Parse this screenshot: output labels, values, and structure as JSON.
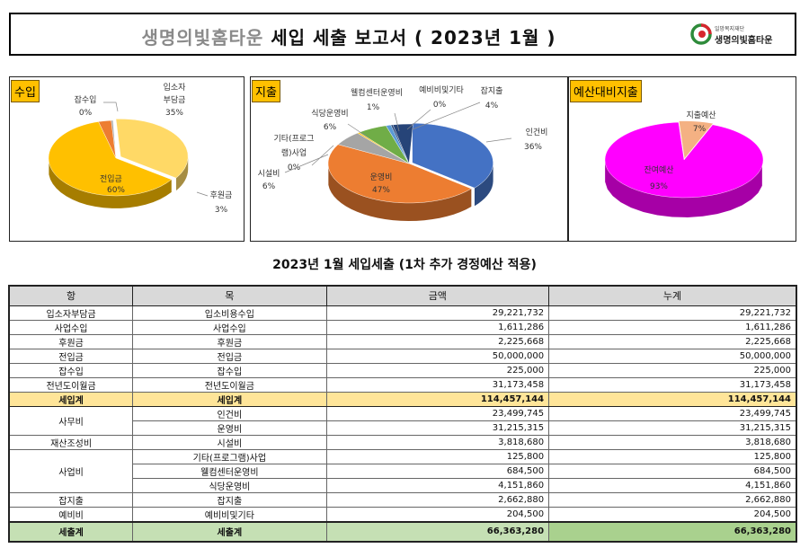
{
  "header": {
    "title_org": "생명의빛홈타운",
    "title_main": "세입 세출 보고서 ( 2023년 1월 )",
    "logo_small": "일망복지재단",
    "logo_name": "생명의빛홈타운"
  },
  "panels": {
    "income_tag": "수입",
    "expense_tag": "지출",
    "budget_tag": "예산대비지출"
  },
  "chart_data": [
    {
      "type": "pie",
      "title": "수입",
      "labels": [
        "입소자 부담금",
        "전입금",
        "후원금",
        "잡수입"
      ],
      "values": [
        35,
        60,
        3,
        0
      ],
      "display_labels": [
        {
          "name": "입소자",
          "name2": "부담금",
          "pct": "35%"
        },
        {
          "name": "전입금",
          "pct": "60%"
        },
        {
          "name": "후원금",
          "pct": "3%"
        },
        {
          "name": "잡수입",
          "pct": "0%"
        }
      ],
      "colors": [
        "#ffd966",
        "#ffc000",
        "#ed7d31",
        "#a5a5a5"
      ]
    },
    {
      "type": "pie",
      "title": "지출",
      "labels": [
        "인건비",
        "운영비",
        "시설비",
        "기타(프로그램)사업",
        "식당운영비",
        "웰컴센터운영비",
        "예비비및기타",
        "잡지출"
      ],
      "values": [
        36,
        47,
        6,
        0,
        6,
        1,
        0,
        4
      ],
      "display_labels": [
        {
          "name": "인건비",
          "pct": "36%"
        },
        {
          "name": "운영비",
          "pct": "47%"
        },
        {
          "name": "시설비",
          "pct": "6%"
        },
        {
          "name": "기타(프로그",
          "name2": "램)사업",
          "pct": "0%"
        },
        {
          "name": "식당운영비",
          "pct": "6%"
        },
        {
          "name": "웰컴센터운영비",
          "pct": "1%"
        },
        {
          "name": "예비비및기타",
          "pct": "0%"
        },
        {
          "name": "잡지출",
          "pct": "4%"
        }
      ],
      "colors": [
        "#4472c4",
        "#ed7d31",
        "#a5a5a5",
        "#ffc000",
        "#70ad47",
        "#5b9bd5",
        "#264478",
        "#264478"
      ]
    },
    {
      "type": "pie",
      "title": "예산대비지출",
      "labels": [
        "지출예산",
        "잔여예산"
      ],
      "values": [
        7,
        93
      ],
      "display_labels": [
        {
          "name": "지출예산",
          "pct": "7%"
        },
        {
          "name": "잔여예산",
          "pct": "93%"
        }
      ],
      "colors": [
        "#f4b183",
        "#ff00ff"
      ]
    }
  ],
  "table": {
    "subtitle": "2023년 1월 세입세출 (1차 추가 경정예산 적용)",
    "headers": [
      "항",
      "목",
      "금액",
      "누계"
    ],
    "income_rows": [
      {
        "hang": "입소자부담금",
        "mok": "입소비용수입",
        "amount": "29,221,732",
        "cum": "29,221,732"
      },
      {
        "hang": "사업수입",
        "mok": "사업수입",
        "amount": "1,611,286",
        "cum": "1,611,286"
      },
      {
        "hang": "후원금",
        "mok": "후원금",
        "amount": "2,225,668",
        "cum": "2,225,668"
      },
      {
        "hang": "전입금",
        "mok": "전입금",
        "amount": "50,000,000",
        "cum": "50,000,000"
      },
      {
        "hang": "잡수입",
        "mok": "잡수입",
        "amount": "225,000",
        "cum": "225,000"
      },
      {
        "hang": "전년도이월금",
        "mok": "전년도이월금",
        "amount": "31,173,458",
        "cum": "31,173,458"
      }
    ],
    "income_total": {
      "hang": "세입계",
      "mok": "세입계",
      "amount": "114,457,144",
      "cum": "114,457,144"
    },
    "expense": {
      "samubi": "사무비",
      "samubi_rows": [
        {
          "mok": "인건비",
          "amount": "23,499,745",
          "cum": "23,499,745"
        },
        {
          "mok": "운영비",
          "amount": "31,215,315",
          "cum": "31,215,315"
        }
      ],
      "jaesan": {
        "hang": "재산조성비",
        "mok": "시설비",
        "amount": "3,818,680",
        "cum": "3,818,680"
      },
      "saeop": "사업비",
      "saeop_rows": [
        {
          "mok": "기타(프로그램)사업",
          "amount": "125,800",
          "cum": "125,800"
        },
        {
          "mok": "웰컴센터운영비",
          "amount": "684,500",
          "cum": "684,500"
        },
        {
          "mok": "식당운영비",
          "amount": "4,151,860",
          "cum": "4,151,860"
        }
      ],
      "japjichul": {
        "hang": "잡지출",
        "mok": "잡지출",
        "amount": "2,662,880",
        "cum": "2,662,880"
      },
      "yebibi": {
        "hang": "예비비",
        "mok": "예비비및기타",
        "amount": "204,500",
        "cum": "204,500"
      }
    },
    "expense_total": {
      "hang": "세출계",
      "mok": "세출계",
      "amount": "66,363,280",
      "cum": "66,363,280"
    }
  }
}
